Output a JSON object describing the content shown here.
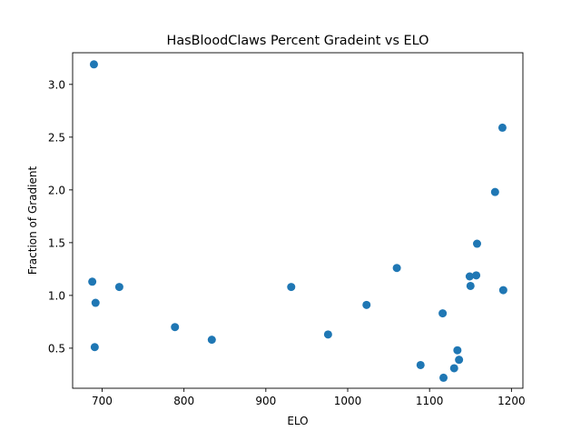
{
  "chart_data": {
    "type": "scatter",
    "title": "HasBloodClaws Percent Gradeint vs ELO",
    "xlabel": "ELO",
    "ylabel": "Fraction of Gradient",
    "xlim": [
      664,
      1214
    ],
    "ylim": [
      0.12,
      3.3
    ],
    "xticks": [
      700,
      800,
      900,
      1000,
      1100,
      1200
    ],
    "yticks": [
      0.5,
      1.0,
      1.5,
      2.0,
      2.5,
      3.0
    ],
    "xtick_labels": [
      "700",
      "800",
      "900",
      "1000",
      "1100",
      "1200"
    ],
    "ytick_labels": [
      "0.5",
      "1.0",
      "1.5",
      "2.0",
      "2.5",
      "3.0"
    ],
    "grid": false,
    "marker_color": "#1f77b4",
    "points": [
      {
        "x": 688,
        "y": 1.13
      },
      {
        "x": 690,
        "y": 3.19
      },
      {
        "x": 691,
        "y": 0.51
      },
      {
        "x": 692,
        "y": 0.93
      },
      {
        "x": 721,
        "y": 1.08
      },
      {
        "x": 789,
        "y": 0.7
      },
      {
        "x": 834,
        "y": 0.58
      },
      {
        "x": 931,
        "y": 1.08
      },
      {
        "x": 976,
        "y": 0.63
      },
      {
        "x": 1023,
        "y": 0.91
      },
      {
        "x": 1060,
        "y": 1.26
      },
      {
        "x": 1089,
        "y": 0.34
      },
      {
        "x": 1116,
        "y": 0.83
      },
      {
        "x": 1117,
        "y": 0.22
      },
      {
        "x": 1130,
        "y": 0.31
      },
      {
        "x": 1134,
        "y": 0.48
      },
      {
        "x": 1136,
        "y": 0.39
      },
      {
        "x": 1149,
        "y": 1.18
      },
      {
        "x": 1150,
        "y": 1.09
      },
      {
        "x": 1157,
        "y": 1.19
      },
      {
        "x": 1158,
        "y": 1.49
      },
      {
        "x": 1180,
        "y": 1.98
      },
      {
        "x": 1189,
        "y": 2.59
      },
      {
        "x": 1190,
        "y": 1.05
      }
    ]
  }
}
